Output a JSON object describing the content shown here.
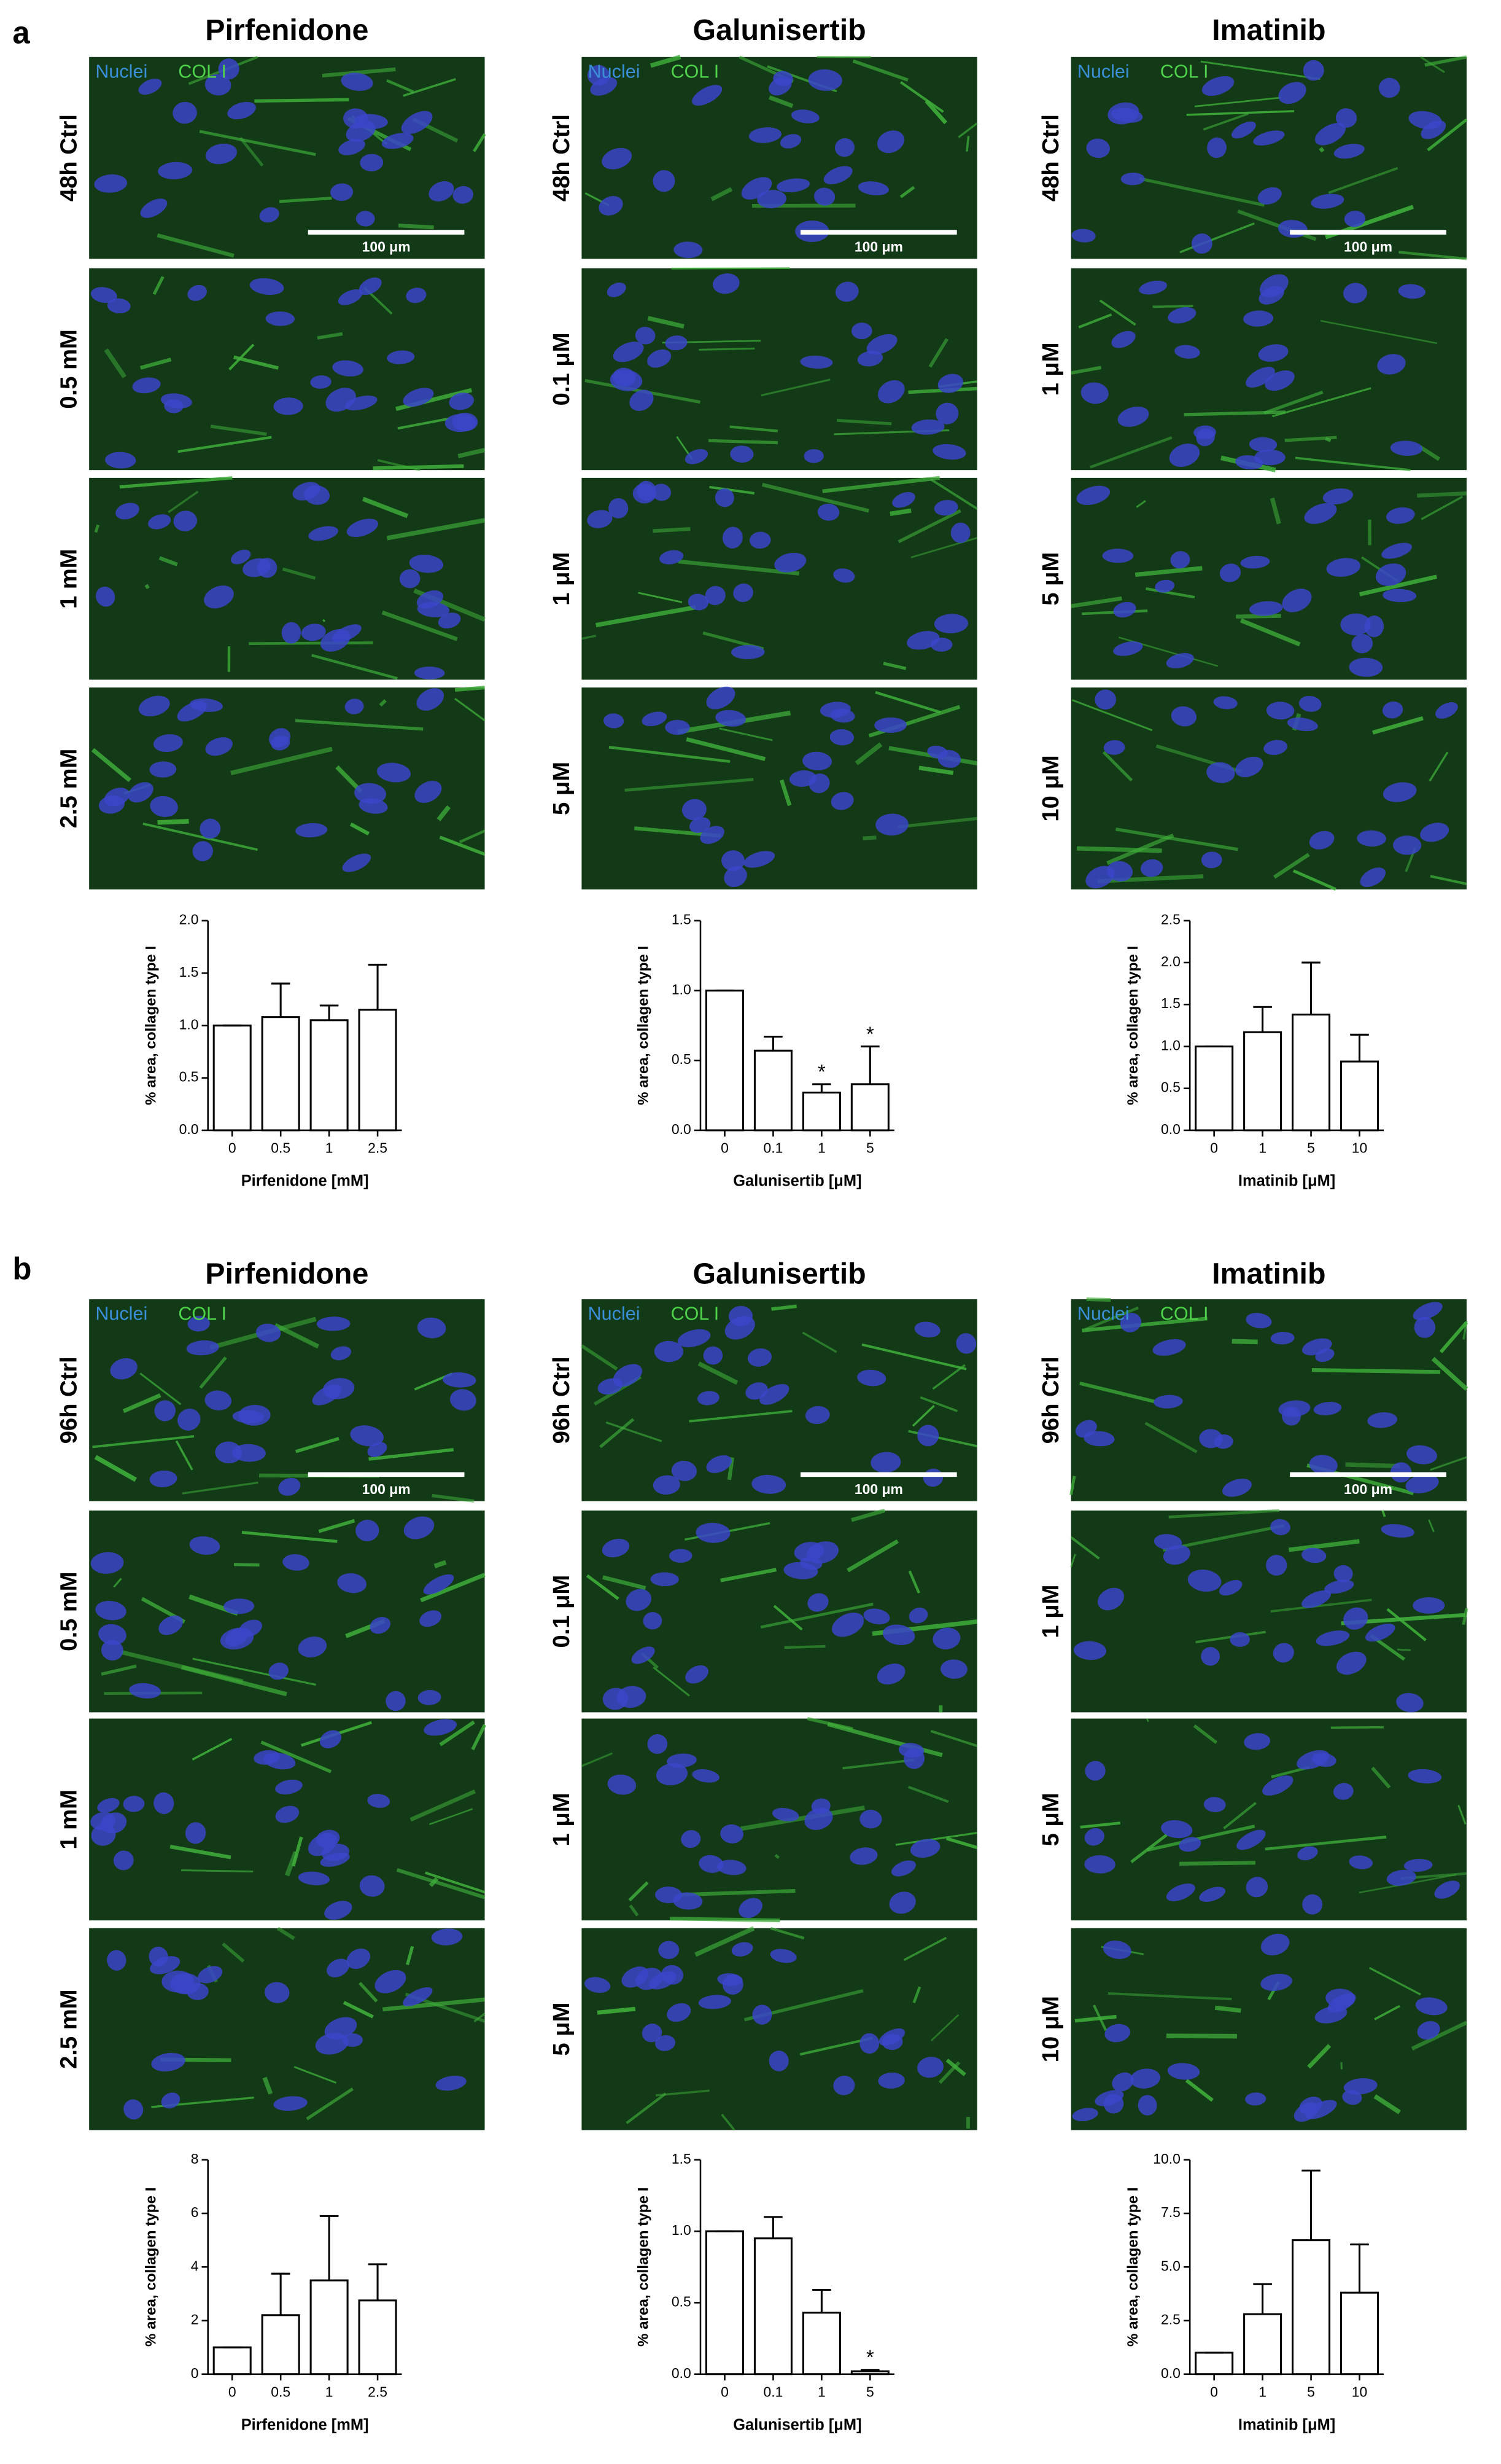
{
  "panels": [
    {
      "label": "a",
      "columns": [
        {
          "title": "Pirfenidone",
          "rows": [
            "48h Ctrl",
            "0.5 mM",
            "1 mM",
            "2.5 mM"
          ],
          "legend": [
            "Nuclei",
            "COL I"
          ],
          "scale_bar": "100 μm"
        },
        {
          "title": "Galunisertib",
          "rows": [
            "48h Ctrl",
            "0.1 μM",
            "1 μM",
            "5 μM"
          ],
          "legend": [
            "Nuclei",
            "COL I"
          ],
          "scale_bar": "100 μm"
        },
        {
          "title": "Imatinib",
          "rows": [
            "48h Ctrl",
            "1 μM",
            "5 μM",
            "10 μM"
          ],
          "legend": [
            "Nuclei",
            "COL I"
          ],
          "scale_bar": "100 μm"
        }
      ]
    },
    {
      "label": "b",
      "columns": [
        {
          "title": "Pirfenidone",
          "rows": [
            "96h Ctrl",
            "0.5 mM",
            "1 mM",
            "2.5 mM"
          ],
          "legend": [
            "Nuclei",
            "COL I"
          ],
          "scale_bar": "100 μm"
        },
        {
          "title": "Galunisertib",
          "rows": [
            "96h Ctrl",
            "0.1 μM",
            "1 μM",
            "5 μM"
          ],
          "legend": [
            "Nuclei",
            "COL I"
          ],
          "scale_bar": "100 μm"
        },
        {
          "title": "Imatinib",
          "rows": [
            "96h Ctrl",
            "1 μM",
            "5 μM",
            "10 μM"
          ],
          "legend": [
            "Nuclei",
            "COL I"
          ],
          "scale_bar": "100 μm"
        }
      ]
    }
  ],
  "chart_data": [
    {
      "type": "bar",
      "y_label": "% area, collagen type I",
      "x_label": "Pirfenidone [mM]",
      "categories": [
        "0",
        "0.5",
        "1",
        "2.5"
      ],
      "values": [
        1.0,
        1.08,
        1.05,
        1.15
      ],
      "errors": [
        0,
        0.32,
        0.14,
        0.43
      ],
      "ylim": [
        0,
        2
      ],
      "yticks": [
        {
          "value": 0,
          "label": "0.0"
        },
        {
          "value": 0.5,
          "label": "0.5"
        },
        {
          "value": 1,
          "label": "1.0"
        },
        {
          "value": 1.5,
          "label": "1.5"
        },
        {
          "value": 2,
          "label": "2.0"
        }
      ],
      "color": "#ffffff"
    },
    {
      "type": "bar",
      "y_label": "% area, collagen type I",
      "x_label": "Galunisertib [μM]",
      "categories": [
        "0",
        "0.1",
        "1",
        "5"
      ],
      "values": [
        1.0,
        0.57,
        0.27,
        0.33
      ],
      "errors": [
        0,
        0.1,
        0.06,
        0.27
      ],
      "markers": [
        null,
        null,
        "*",
        "*"
      ],
      "ylim": [
        0,
        1.5
      ],
      "yticks": [
        {
          "value": 0,
          "label": "0.0"
        },
        {
          "value": 0.5,
          "label": "0.5"
        },
        {
          "value": 1,
          "label": "1.0"
        },
        {
          "value": 1.5,
          "label": "1.5"
        }
      ],
      "color": "#ffffff"
    },
    {
      "type": "bar",
      "y_label": "% area, collagen type I",
      "x_label": "Imatinib [μM]",
      "categories": [
        "0",
        "1",
        "5",
        "10"
      ],
      "values": [
        1.0,
        1.17,
        1.38,
        0.82
      ],
      "errors": [
        0,
        0.3,
        0.62,
        0.32
      ],
      "ylim": [
        0,
        2.5
      ],
      "yticks": [
        {
          "value": 0,
          "label": "0.0"
        },
        {
          "value": 0.5,
          "label": "0.5"
        },
        {
          "value": 1,
          "label": "1.0"
        },
        {
          "value": 1.5,
          "label": "1.5"
        },
        {
          "value": 2,
          "label": "2.0"
        },
        {
          "value": 2.5,
          "label": "2.5"
        }
      ],
      "color": "#ffffff"
    },
    {
      "type": "bar",
      "y_label": "% area, collagen type I",
      "x_label": "Pirfenidone [mM]",
      "categories": [
        "0",
        "0.5",
        "1",
        "2.5"
      ],
      "values": [
        1.0,
        2.2,
        3.5,
        2.75
      ],
      "errors": [
        0,
        1.55,
        2.4,
        1.35
      ],
      "ylim": [
        0,
        8
      ],
      "yticks": [
        0,
        2,
        4,
        6,
        8
      ],
      "color": "#ffffff"
    },
    {
      "type": "bar",
      "y_label": "% area, collagen type I",
      "x_label": "Galunisertib [μM]",
      "categories": [
        "0",
        "0.1",
        "1",
        "5"
      ],
      "values": [
        1.0,
        0.95,
        0.43,
        0.02
      ],
      "errors": [
        0,
        0.15,
        0.16,
        0.01
      ],
      "markers": [
        null,
        null,
        null,
        "*"
      ],
      "ylim": [
        0,
        1.5
      ],
      "yticks": [
        {
          "value": 0,
          "label": "0.0"
        },
        {
          "value": 0.5,
          "label": "0.5"
        },
        {
          "value": 1,
          "label": "1.0"
        },
        {
          "value": 1.5,
          "label": "1.5"
        }
      ],
      "color": "#ffffff"
    },
    {
      "type": "bar",
      "y_label": "% area, collagen type I",
      "x_label": "Imatinib [μM]",
      "categories": [
        "0",
        "1",
        "5",
        "10"
      ],
      "values": [
        1.0,
        2.8,
        6.25,
        3.8
      ],
      "errors": [
        0,
        1.4,
        3.25,
        2.25
      ],
      "ylim": [
        0,
        10
      ],
      "yticks": [
        {
          "value": 0,
          "label": "0.0"
        },
        {
          "value": 2.5,
          "label": "2.5"
        },
        {
          "value": 5,
          "label": "5.0"
        },
        {
          "value": 7.5,
          "label": "7.5"
        },
        {
          "value": 10,
          "label": "10.0"
        }
      ],
      "color": "#ffffff"
    }
  ]
}
